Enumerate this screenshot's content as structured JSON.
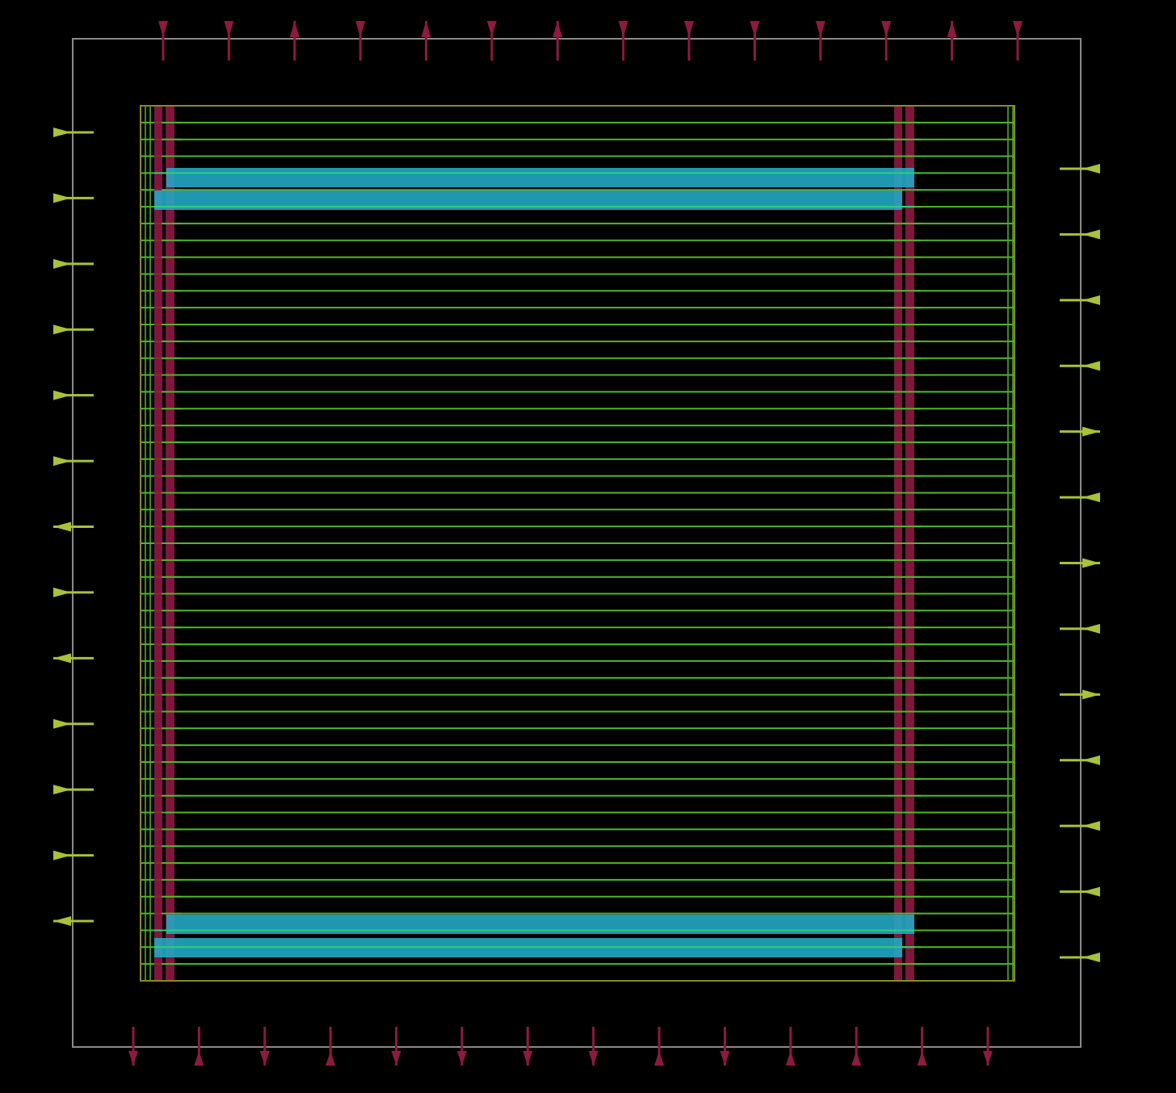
{
  "colors": {
    "background": "#000000",
    "die_boundary": "#8a8a8a",
    "core_outline": "#8a8a2a",
    "row_lines": "#4fb82a",
    "power_rail": "#8c1a42",
    "power_ring_strap": "#22a7c4",
    "pin_top_bottom": "#8c1a42",
    "pin_left_right": "#a8c23a"
  },
  "rows": {
    "count": 53
  },
  "pins": {
    "top": [
      "in",
      "in",
      "out",
      "in",
      "out",
      "in",
      "out",
      "in",
      "in",
      "in",
      "in",
      "in",
      "out",
      "in"
    ],
    "bottom": [
      "out",
      "in",
      "out",
      "in",
      "out",
      "out",
      "out",
      "out",
      "in",
      "out",
      "in",
      "in",
      "in",
      "out"
    ],
    "left": [
      "in",
      "in",
      "in",
      "in",
      "in",
      "in",
      "out",
      "in",
      "out",
      "in",
      "in",
      "in",
      "out"
    ],
    "right": [
      "in",
      "in",
      "in",
      "in",
      "out",
      "in",
      "out",
      "in",
      "out",
      "in",
      "in",
      "in",
      "in"
    ]
  }
}
